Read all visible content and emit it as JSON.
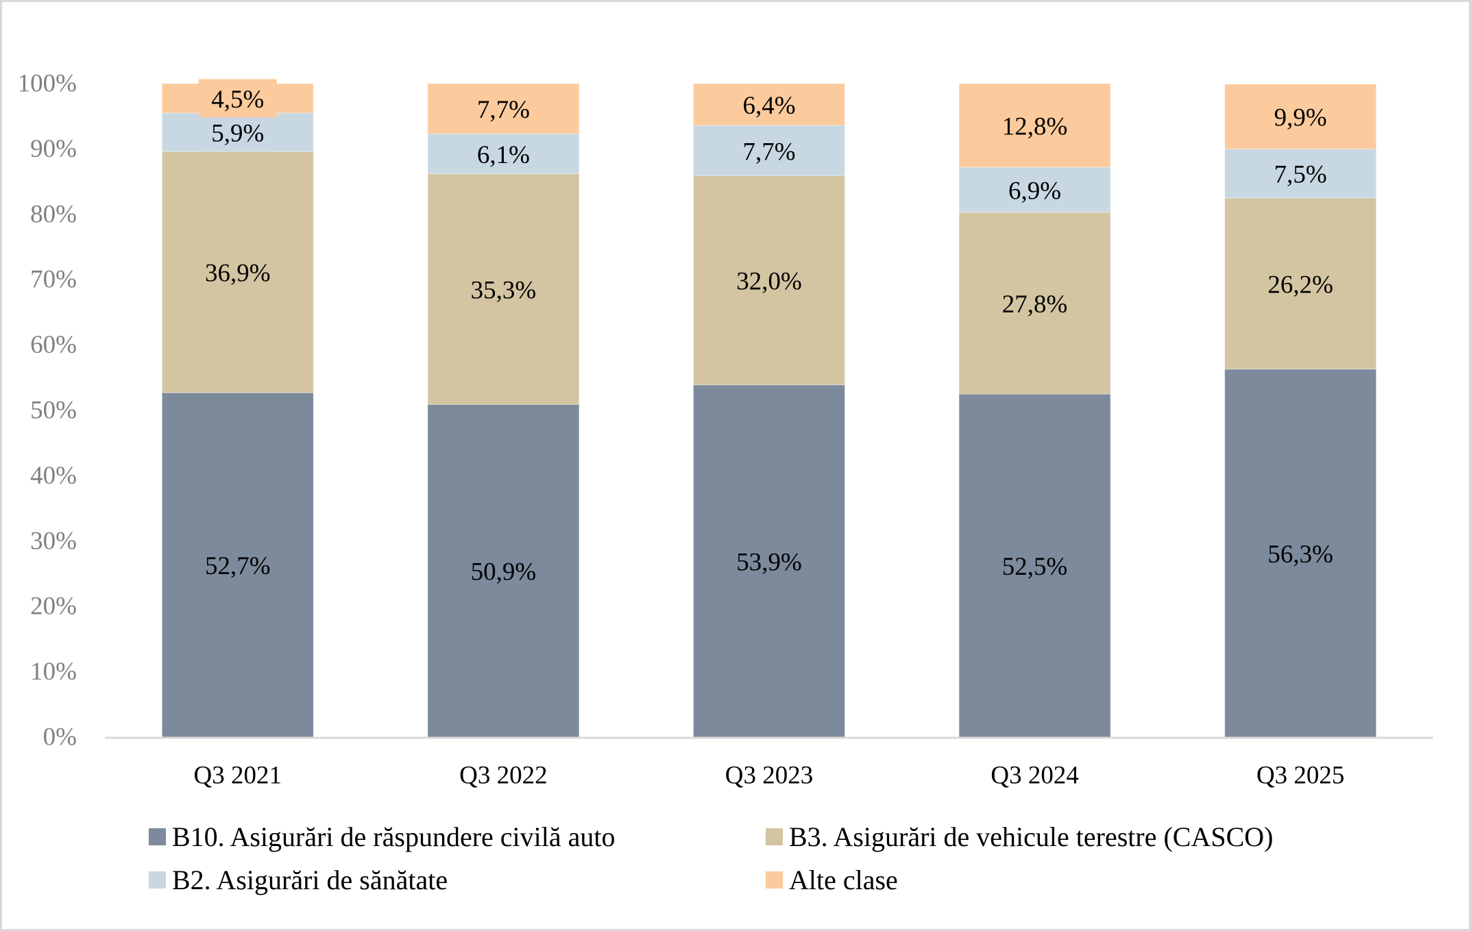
{
  "chart_data": {
    "type": "bar",
    "stacked": true,
    "normalized": true,
    "title": "",
    "xlabel": "",
    "ylabel": "",
    "ylim": [
      0,
      100
    ],
    "y_ticks": [
      "0%",
      "10%",
      "20%",
      "30%",
      "40%",
      "50%",
      "60%",
      "70%",
      "80%",
      "90%",
      "100%"
    ],
    "grid": false,
    "legend_position": "bottom",
    "categories": [
      "Q3 2021",
      "Q3 2022",
      "Q3 2023",
      "Q3 2024",
      "Q3 2025"
    ],
    "series": [
      {
        "name": "B10. Asigurări de răspundere civilă auto",
        "color": "#7c8a9c",
        "values": [
          52.7,
          50.9,
          53.9,
          52.5,
          56.3
        ],
        "labels": [
          "52,7%",
          "50,9%",
          "53,9%",
          "52,5%",
          "56,3%"
        ]
      },
      {
        "name": "B3. Asigurări de vehicule terestre (CASCO)",
        "color": "#d3c5a2",
        "values": [
          36.9,
          35.3,
          32.0,
          27.8,
          26.2
        ],
        "labels": [
          "36,9%",
          "35,3%",
          "32,0%",
          "27,8%",
          "26,2%"
        ]
      },
      {
        "name": "B2. Asigurări de sănătate",
        "color": "#c8d8e3",
        "values": [
          5.9,
          6.1,
          7.7,
          6.9,
          7.5
        ],
        "labels": [
          "5,9%",
          "6,1%",
          "7,7%",
          "6,9%",
          "7,5%"
        ]
      },
      {
        "name": "Alte clase",
        "color": "#fccb9d",
        "values": [
          4.5,
          7.7,
          6.4,
          12.8,
          9.9
        ],
        "labels": [
          "4,5%",
          "7,7%",
          "6,4%",
          "12,8%",
          "9,9%"
        ]
      }
    ]
  },
  "legend": {
    "items": [
      {
        "label": "B10. Asigurări de răspundere civilă auto",
        "color": "#7c8a9c"
      },
      {
        "label": "B3. Asigurări de vehicule terestre (CASCO)",
        "color": "#d3c5a2"
      },
      {
        "label": "B2. Asigurări de sănătate",
        "color": "#c8d8e3"
      },
      {
        "label": "Alte clase",
        "color": "#fccb9d"
      }
    ]
  }
}
